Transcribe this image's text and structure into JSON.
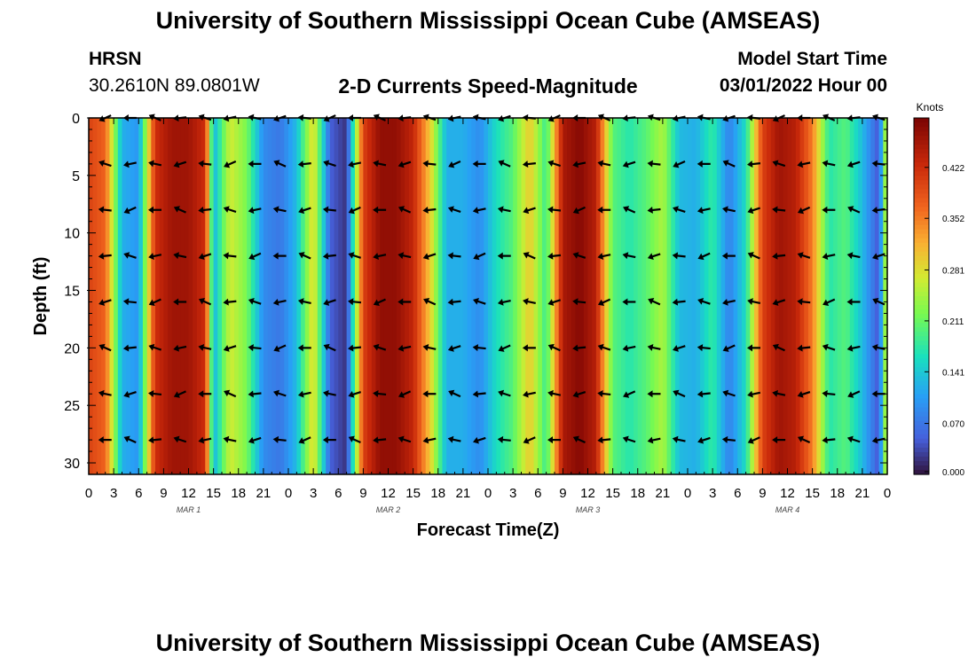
{
  "header": {
    "title": "University of Southern Mississippi Ocean Cube (AMSEAS)",
    "station": "HRSN",
    "coords": "30.2610N  89.0801W",
    "subtitle": "2-D Currents Speed-Magnitude",
    "model_start_label": "Model Start Time",
    "model_start_value": "03/01/2022 Hour 00"
  },
  "footer": {
    "title": "University of Southern Mississippi Ocean Cube (AMSEAS)"
  },
  "chart_data": {
    "type": "heatmap",
    "title": "2-D Currents Speed-Magnitude",
    "xlabel": "Forecast Time(Z)",
    "ylabel": "Depth (ft)",
    "xlim": [
      0,
      96
    ],
    "ylim": [
      31,
      0
    ],
    "x_tick_labels": [
      "0",
      "3",
      "6",
      "9",
      "12",
      "15",
      "18",
      "21",
      "0",
      "3",
      "6",
      "9",
      "12",
      "15",
      "18",
      "21",
      "0",
      "3",
      "6",
      "9",
      "12",
      "15",
      "18",
      "21",
      "0",
      "3",
      "6",
      "9",
      "12",
      "15",
      "18",
      "21",
      "0"
    ],
    "y_ticks": [
      0,
      5,
      10,
      15,
      20,
      25,
      30
    ],
    "day_labels": [
      {
        "label": "MAR 1",
        "hour": 12
      },
      {
        "label": "MAR 2",
        "hour": 36
      },
      {
        "label": "MAR 3",
        "hour": 60
      },
      {
        "label": "MAR 4",
        "hour": 84
      }
    ],
    "colorbar": {
      "units": "Knots",
      "ticks": [
        "0.422",
        "0.352",
        "0.281",
        "0.211",
        "0.141",
        "0.070",
        "0.000"
      ],
      "range": [
        0.0,
        0.49
      ]
    },
    "speed_knots_by_hour": [
      [
        0,
        0.4
      ],
      [
        2,
        0.37
      ],
      [
        4,
        0.12
      ],
      [
        6,
        0.1
      ],
      [
        8,
        0.42
      ],
      [
        10,
        0.46
      ],
      [
        12,
        0.46
      ],
      [
        14,
        0.42
      ],
      [
        15,
        0.12
      ],
      [
        17,
        0.27
      ],
      [
        19,
        0.22
      ],
      [
        21,
        0.09
      ],
      [
        23,
        0.07
      ],
      [
        25,
        0.13
      ],
      [
        27,
        0.29
      ],
      [
        29,
        0.05
      ],
      [
        31,
        0.02
      ],
      [
        33,
        0.4
      ],
      [
        35,
        0.47
      ],
      [
        37,
        0.47
      ],
      [
        39,
        0.43
      ],
      [
        41,
        0.3
      ],
      [
        43,
        0.12
      ],
      [
        45,
        0.12
      ],
      [
        47,
        0.09
      ],
      [
        49,
        0.16
      ],
      [
        51,
        0.2
      ],
      [
        53,
        0.3
      ],
      [
        55,
        0.18
      ],
      [
        57,
        0.45
      ],
      [
        59,
        0.48
      ],
      [
        61,
        0.44
      ],
      [
        63,
        0.2
      ],
      [
        65,
        0.17
      ],
      [
        67,
        0.2
      ],
      [
        69,
        0.25
      ],
      [
        71,
        0.13
      ],
      [
        73,
        0.12
      ],
      [
        75,
        0.18
      ],
      [
        77,
        0.08
      ],
      [
        79,
        0.16
      ],
      [
        81,
        0.4
      ],
      [
        83,
        0.46
      ],
      [
        85,
        0.44
      ],
      [
        87,
        0.35
      ],
      [
        89,
        0.17
      ],
      [
        91,
        0.2
      ],
      [
        93,
        0.13
      ],
      [
        95,
        0.04
      ],
      [
        96,
        0.3
      ]
    ],
    "vector_depths_ft": [
      0,
      4,
      8,
      12,
      16,
      20,
      24,
      28
    ],
    "vector_hours": [
      2,
      5,
      8,
      11,
      14,
      17,
      20,
      23,
      26,
      29,
      32,
      35,
      38,
      41,
      44,
      47,
      50,
      53,
      56,
      59,
      62,
      65,
      68,
      71,
      74,
      77,
      80,
      83,
      86,
      89,
      92,
      95
    ]
  }
}
